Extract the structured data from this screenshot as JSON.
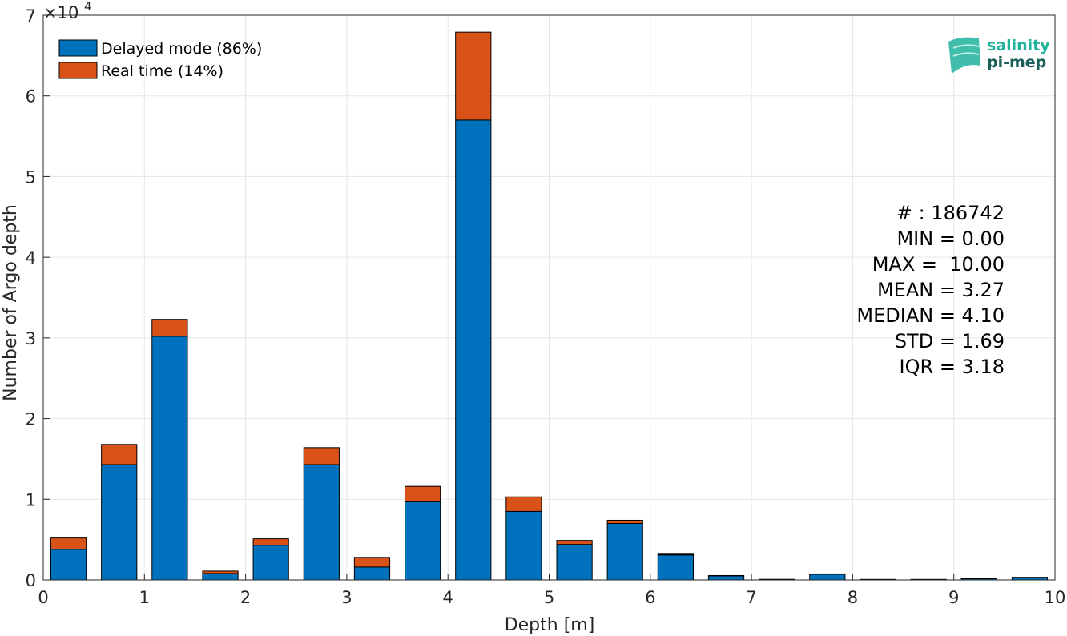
{
  "chart_data": {
    "type": "bar",
    "stacked": true,
    "xlabel": "Depth [m]",
    "ylabel": "Number of Argo depth",
    "xlim": [
      0,
      10
    ],
    "ylim": [
      0,
      70000
    ],
    "y_exponent_label": "×10",
    "y_exponent_power": "4",
    "x_ticks": [
      "0",
      "1",
      "2",
      "3",
      "4",
      "5",
      "6",
      "7",
      "8",
      "9",
      "10"
    ],
    "y_ticks": [
      "0",
      "1",
      "2",
      "3",
      "4",
      "5",
      "6",
      "7"
    ],
    "grid": true,
    "legend_position": "top-left",
    "bin_width": 0.5,
    "x": [
      0.25,
      0.75,
      1.25,
      1.75,
      2.25,
      2.75,
      3.25,
      3.75,
      4.25,
      4.75,
      5.25,
      5.75,
      6.25,
      6.75,
      7.25,
      7.75,
      8.25,
      8.75,
      9.25,
      9.75
    ],
    "series": [
      {
        "name": "Delayed mode (86%)",
        "color": "#0072bd",
        "values": [
          3800,
          14300,
          30200,
          800,
          4300,
          14300,
          1600,
          9700,
          57000,
          8500,
          4400,
          7000,
          3100,
          500,
          50,
          700,
          50,
          50,
          150,
          300
        ]
      },
      {
        "name": "Real time (14%)",
        "color": "#d95319",
        "values": [
          1400,
          2500,
          2100,
          300,
          800,
          2100,
          1200,
          1900,
          10900,
          1800,
          500,
          400,
          100,
          50,
          30,
          50,
          20,
          20,
          80,
          30
        ]
      }
    ]
  },
  "stats": [
    "# : 186742",
    "MIN = 0.00",
    "MAX =  10.00",
    "MEAN = 3.27",
    "MEDIAN = 4.10",
    "STD = 1.69",
    "IQR = 3.18"
  ],
  "logo": {
    "line1": "salinity",
    "line2": "pi-mep",
    "color_teal": "#20b39c",
    "color_dark": "#1a5f5a"
  }
}
